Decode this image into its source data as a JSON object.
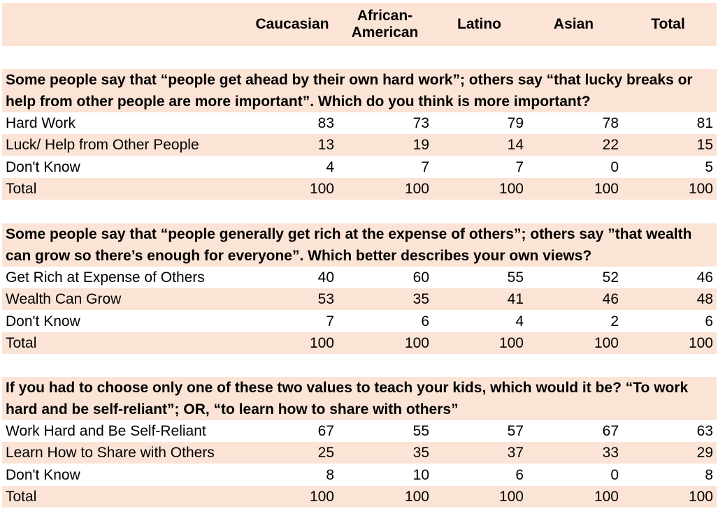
{
  "colors": {
    "shade": "#fbe4d5"
  },
  "chart_data": {
    "type": "table",
    "columns": [
      "Caucasian",
      "African-\nAmerican",
      "Latino",
      "Asian",
      "Total"
    ],
    "sections": [
      {
        "question": "Some people say that “people get ahead by their own hard work”; others say “that lucky breaks or help from other people are more important”. Which do you think is more important?",
        "rows": [
          {
            "label": "Hard Work",
            "values": [
              83,
              73,
              79,
              78,
              81
            ]
          },
          {
            "label": "Luck/ Help from Other People",
            "values": [
              13,
              19,
              14,
              22,
              15
            ]
          },
          {
            "label": "Don't Know",
            "values": [
              4,
              7,
              7,
              0,
              5
            ]
          },
          {
            "label": "Total",
            "values": [
              100,
              100,
              100,
              100,
              100
            ]
          }
        ]
      },
      {
        "question": "Some people say that “people generally get rich at the expense of others”; others say ”that wealth can grow so there’s enough for everyone”. Which better describes your own views?",
        "rows": [
          {
            "label": "Get Rich at Expense of Others",
            "values": [
              40,
              60,
              55,
              52,
              46
            ]
          },
          {
            "label": "Wealth Can Grow",
            "values": [
              53,
              35,
              41,
              46,
              48
            ]
          },
          {
            "label": "Don't Know",
            "values": [
              7,
              6,
              4,
              2,
              6
            ]
          },
          {
            "label": "Total",
            "values": [
              100,
              100,
              100,
              100,
              100
            ]
          }
        ]
      },
      {
        "question": "If you had to choose only one of these two values to teach your kids, which would it be? “To work hard and be self-reliant”; OR, “to learn how to share with others”",
        "rows": [
          {
            "label": "Work Hard and Be Self-Reliant",
            "values": [
              67,
              55,
              57,
              67,
              63
            ]
          },
          {
            "label": "Learn How to Share with Others",
            "values": [
              25,
              35,
              37,
              33,
              29
            ]
          },
          {
            "label": "Don't Know",
            "values": [
              8,
              10,
              6,
              0,
              8
            ]
          },
          {
            "label": "Total",
            "values": [
              100,
              100,
              100,
              100,
              100
            ]
          }
        ]
      }
    ]
  }
}
